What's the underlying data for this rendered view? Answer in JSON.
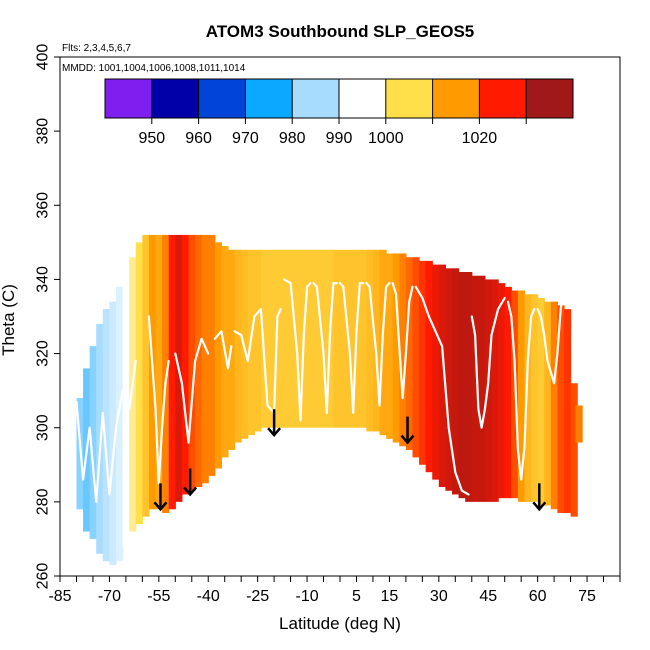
{
  "chart_data": {
    "type": "heatmap",
    "title": "ATOM3 Southbound SLP_GEOS5",
    "annotations": {
      "flights": "Flts: 2,3,4,5,6,7",
      "dates": "MMDD: 1001,1004,1006,1008,1011,1014"
    },
    "xlabel": "Latitude (deg N)",
    "ylabel": "Theta (C)",
    "xlim": [
      -85,
      85
    ],
    "ylim": [
      260,
      400
    ],
    "x_ticks": [
      -85,
      -80,
      -75,
      -70,
      -65,
      -60,
      -55,
      -50,
      -45,
      -40,
      -35,
      -30,
      -25,
      -20,
      -15,
      -10,
      -5,
      0,
      5,
      10,
      15,
      20,
      25,
      30,
      35,
      40,
      45,
      50,
      55,
      60,
      65,
      70,
      75,
      80,
      85
    ],
    "x_tick_labels": [
      "-85",
      "-70",
      "-55",
      "-40",
      "-25",
      "-10",
      "5",
      "15",
      "30",
      "45",
      "60",
      "75"
    ],
    "x_tick_label_values": [
      -85,
      -70,
      -55,
      -40,
      -25,
      -10,
      5,
      15,
      30,
      45,
      60,
      75
    ],
    "y_ticks": [
      260,
      280,
      300,
      320,
      340,
      360,
      380,
      400
    ],
    "y_tick_labels": [
      "260",
      "280",
      "300",
      "320",
      "340",
      "360",
      "380",
      "400"
    ],
    "colorbar": {
      "levels": [
        945,
        950,
        960,
        970,
        980,
        990,
        1000,
        1010,
        1020,
        1030
      ],
      "colors": [
        "#7f1fef",
        "#0000a8",
        "#0044d8",
        "#0aa8ff",
        "#a8dcff",
        "#ffffff",
        "#ffe04a",
        "#ff9a00",
        "#ff1a00",
        "#a01818"
      ],
      "tick_labels": [
        "950",
        "960",
        "970",
        "980",
        "990",
        "1000",
        "1020"
      ],
      "tick_values": [
        950,
        960,
        970,
        980,
        990,
        1000,
        1020
      ]
    },
    "field": {
      "description_of_columns": "each column: latitude, theta bottom, theta top, SLP value (hPa)",
      "columns": [
        [
          -79,
          278,
          308,
          978
        ],
        [
          -77,
          272,
          316,
          976
        ],
        [
          -75,
          270,
          322,
          978
        ],
        [
          -73,
          266,
          328,
          980
        ],
        [
          -71,
          264,
          332,
          982
        ],
        [
          -69,
          263,
          334,
          984
        ],
        [
          -67,
          264,
          338,
          986
        ],
        [
          -65,
          268,
          342,
          990
        ],
        [
          -63,
          272,
          346,
          996
        ],
        [
          -61,
          274,
          350,
          1000
        ],
        [
          -59,
          276,
          352,
          1004
        ],
        [
          -57,
          278,
          352,
          1010
        ],
        [
          -55,
          278,
          352,
          1008
        ],
        [
          -53,
          277,
          352,
          1012
        ],
        [
          -51,
          278,
          352,
          1020
        ],
        [
          -49,
          280,
          352,
          1024
        ],
        [
          -47,
          282,
          352,
          1020
        ],
        [
          -45,
          283,
          352,
          1016
        ],
        [
          -43,
          284,
          352,
          1014
        ],
        [
          -41,
          285,
          352,
          1012
        ],
        [
          -39,
          287,
          352,
          1012
        ],
        [
          -37,
          289,
          350,
          1010
        ],
        [
          -35,
          292,
          349,
          1008
        ],
        [
          -33,
          294,
          348,
          1008
        ],
        [
          -31,
          296,
          348,
          1006
        ],
        [
          -29,
          297,
          348,
          1005
        ],
        [
          -27,
          298,
          348,
          1004
        ],
        [
          -25,
          299,
          348,
          1004
        ],
        [
          -23,
          300,
          348,
          1003
        ],
        [
          -21,
          300,
          348,
          1003
        ],
        [
          -19,
          300,
          348,
          1003
        ],
        [
          -17,
          300,
          348,
          1003
        ],
        [
          -15,
          300,
          348,
          1003
        ],
        [
          -13,
          300,
          348,
          1003
        ],
        [
          -11,
          300,
          348,
          1003
        ],
        [
          -9,
          300,
          348,
          1003
        ],
        [
          -7,
          300,
          348,
          1003
        ],
        [
          -5,
          300,
          348,
          1003
        ],
        [
          -3,
          300,
          348,
          1003
        ],
        [
          -1,
          300,
          348,
          1004
        ],
        [
          1,
          300,
          348,
          1004
        ],
        [
          3,
          300,
          348,
          1004
        ],
        [
          5,
          300,
          348,
          1004
        ],
        [
          7,
          300,
          348,
          1004
        ],
        [
          9,
          299,
          348,
          1005
        ],
        [
          11,
          299,
          348,
          1006
        ],
        [
          13,
          298,
          348,
          1008
        ],
        [
          15,
          297,
          347,
          1008
        ],
        [
          17,
          296,
          347,
          1010
        ],
        [
          19,
          295,
          347,
          1012
        ],
        [
          21,
          294,
          346,
          1014
        ],
        [
          23,
          292,
          346,
          1016
        ],
        [
          25,
          290,
          345,
          1018
        ],
        [
          27,
          288,
          345,
          1020
        ],
        [
          29,
          286,
          344,
          1022
        ],
        [
          31,
          284,
          344,
          1024
        ],
        [
          33,
          283,
          343,
          1025
        ],
        [
          35,
          282,
          343,
          1026
        ],
        [
          37,
          281,
          342,
          1027
        ],
        [
          39,
          280,
          342,
          1027
        ],
        [
          41,
          280,
          341,
          1026
        ],
        [
          43,
          280,
          341,
          1026
        ],
        [
          45,
          280,
          340,
          1025
        ],
        [
          47,
          280,
          340,
          1024
        ],
        [
          49,
          281,
          339,
          1022
        ],
        [
          51,
          281,
          338,
          1020
        ],
        [
          53,
          281,
          337,
          1016
        ],
        [
          55,
          280,
          337,
          1010
        ],
        [
          57,
          280,
          336,
          1006
        ],
        [
          59,
          280,
          336,
          1004
        ],
        [
          61,
          279,
          335,
          1003
        ],
        [
          63,
          279,
          334,
          1006
        ],
        [
          65,
          278,
          334,
          1012
        ],
        [
          67,
          277,
          333,
          1016
        ],
        [
          69,
          277,
          332,
          1018
        ],
        [
          71,
          276,
          312,
          1016
        ],
        [
          72.5,
          296,
          306,
          1012
        ]
      ]
    },
    "white_traces": [
      [
        [
          -80,
          307
        ],
        [
          -78,
          286
        ],
        [
          -76,
          300
        ],
        [
          -74,
          280
        ],
        [
          -72,
          304
        ],
        [
          -70,
          282
        ],
        [
          -68,
          300
        ],
        [
          -66,
          310
        ],
        [
          -64,
          305
        ],
        [
          -62,
          318
        ]
      ],
      [
        [
          -58,
          330
        ],
        [
          -56,
          305
        ],
        [
          -55,
          285
        ],
        [
          -54,
          300
        ],
        [
          -53,
          312
        ],
        [
          -52,
          318
        ]
      ],
      [
        [
          -50,
          320
        ],
        [
          -48,
          312
        ],
        [
          -46,
          296
        ],
        [
          -44,
          318
        ],
        [
          -42,
          324
        ],
        [
          -40,
          320
        ]
      ],
      [
        [
          -38,
          324
        ],
        [
          -36,
          326
        ],
        [
          -34,
          316
        ],
        [
          -33,
          322
        ]
      ],
      [
        [
          -32,
          326
        ],
        [
          -30,
          325
        ],
        [
          -28,
          318
        ],
        [
          -26,
          330
        ],
        [
          -24,
          332
        ],
        [
          -22,
          306
        ],
        [
          -20,
          304
        ],
        [
          -19,
          330
        ],
        [
          -18,
          332
        ]
      ],
      [
        [
          -17,
          340
        ],
        [
          -15,
          339
        ],
        [
          -13,
          320
        ],
        [
          -12,
          302
        ],
        [
          -11,
          325
        ],
        [
          -10,
          338
        ],
        [
          -9,
          339
        ]
      ],
      [
        [
          -8,
          339
        ],
        [
          -7,
          338
        ],
        [
          -5,
          320
        ],
        [
          -4,
          304
        ],
        [
          -3,
          326
        ],
        [
          -2,
          339
        ],
        [
          -1,
          339
        ]
      ],
      [
        [
          0,
          339
        ],
        [
          1,
          338
        ],
        [
          3,
          320
        ],
        [
          4,
          304
        ],
        [
          5,
          326
        ],
        [
          6,
          339
        ],
        [
          7,
          339
        ]
      ],
      [
        [
          8,
          339
        ],
        [
          9,
          338
        ],
        [
          11,
          320
        ],
        [
          12,
          306
        ],
        [
          13,
          325
        ],
        [
          14,
          338
        ],
        [
          15,
          339
        ]
      ],
      [
        [
          16,
          339
        ],
        [
          17,
          336
        ],
        [
          18,
          322
        ],
        [
          19,
          308
        ],
        [
          20,
          320
        ],
        [
          21,
          334
        ],
        [
          22,
          338
        ]
      ],
      [
        [
          23,
          338
        ],
        [
          25,
          335
        ],
        [
          27,
          330
        ],
        [
          29,
          326
        ],
        [
          31,
          322
        ],
        [
          33,
          300
        ],
        [
          35,
          288
        ],
        [
          37,
          283
        ],
        [
          39,
          282
        ]
      ],
      [
        [
          40,
          330
        ],
        [
          41,
          325
        ],
        [
          42,
          305
        ],
        [
          43,
          300
        ],
        [
          44,
          305
        ],
        [
          45,
          312
        ],
        [
          46,
          325
        ],
        [
          48,
          332
        ],
        [
          50,
          335
        ]
      ],
      [
        [
          51,
          334
        ],
        [
          52,
          330
        ],
        [
          53,
          318
        ],
        [
          54,
          294
        ],
        [
          55,
          286
        ],
        [
          56,
          295
        ],
        [
          57,
          318
        ],
        [
          58,
          330
        ],
        [
          59,
          332
        ]
      ],
      [
        [
          60,
          332
        ],
        [
          61,
          330
        ],
        [
          62,
          325
        ],
        [
          63,
          318
        ],
        [
          64,
          315
        ],
        [
          65,
          312
        ],
        [
          66,
          320
        ],
        [
          67,
          332
        ],
        [
          68,
          338
        ],
        [
          69,
          336
        ]
      ]
    ],
    "arrows": [
      {
        "x": -54.5,
        "y_start": 285,
        "y_end": 278
      },
      {
        "x": -45.5,
        "y_start": 289,
        "y_end": 282
      },
      {
        "x": -20,
        "y_start": 305,
        "y_end": 298
      },
      {
        "x": 20.5,
        "y_start": 303,
        "y_end": 296
      },
      {
        "x": 60.5,
        "y_start": 285,
        "y_end": 278
      }
    ]
  }
}
